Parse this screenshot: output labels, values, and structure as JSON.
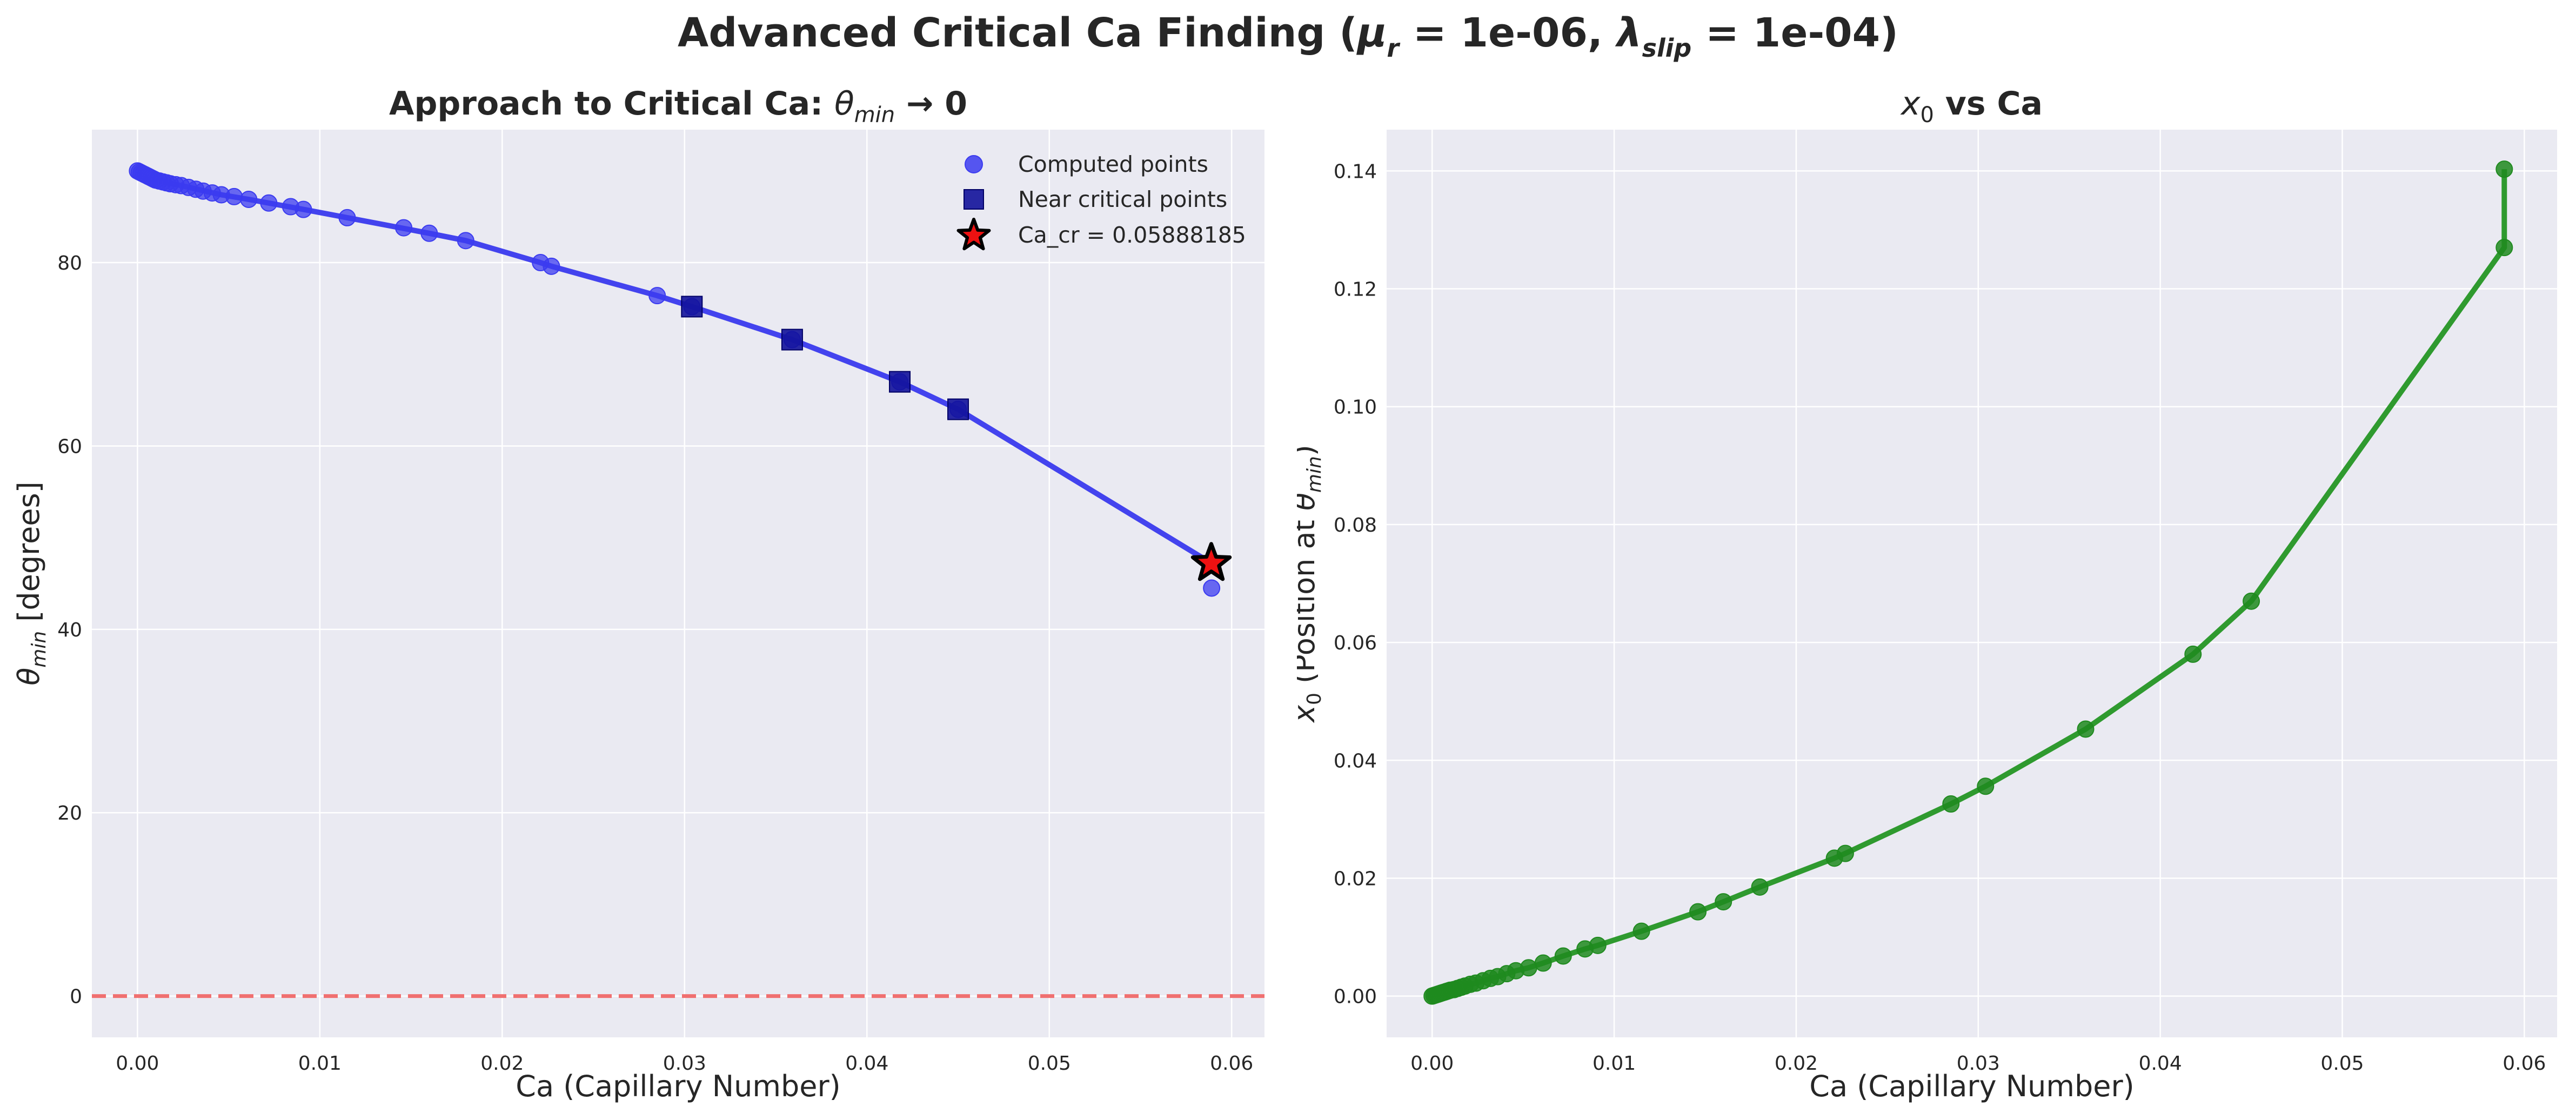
{
  "figure": {
    "title_prefix": "Advanced Critical Ca Finding (",
    "title_mu": "μ",
    "title_mu_sub": "r",
    "title_mid": " = 1e-06, ",
    "title_lambda": "λ",
    "title_lambda_sub": "slip",
    "title_suffix": " = 1e-04)"
  },
  "colors": {
    "background": "#ffffff",
    "axes_face": "#eaeaf2",
    "grid": "#ffffff",
    "text": "#262626",
    "blue_line": "#4343ee",
    "blue_marker": "#3b3bf0",
    "near_critical_marker": "#12129a",
    "star_fill": "#ee1111",
    "reference_line": "#f07070",
    "green": "#2f9a2f",
    "green_marker": "#1f8a1f"
  },
  "chart_data": [
    {
      "type": "scatter",
      "title_prefix": "Approach to Critical Ca: ",
      "title_theta": "θ",
      "title_theta_sub": "min",
      "title_suffix": " → 0",
      "xlabel": "Ca (Capillary Number)",
      "ylabel_theta": "θ",
      "ylabel_sub": "min",
      "ylabel_suffix": " [degrees]",
      "xlim": [
        -0.0025,
        0.0618
      ],
      "ylim": [
        -4.5,
        94.5
      ],
      "xticks": [
        0.0,
        0.01,
        0.02,
        0.03,
        0.04,
        0.05,
        0.06
      ],
      "xtick_labels": [
        "0.00",
        "0.01",
        "0.02",
        "0.03",
        "0.04",
        "0.05",
        "0.06"
      ],
      "yticks": [
        0,
        20,
        40,
        60,
        80
      ],
      "ytick_labels": [
        "0",
        "20",
        "40",
        "60",
        "80"
      ],
      "grid": true,
      "legend_position": "top-right",
      "series": [
        {
          "name": "Computed points",
          "marker": "circle",
          "x": [
            0.0,
            0.0001,
            0.0002,
            0.0003,
            0.0004,
            0.0005,
            0.0006,
            0.0007,
            0.0008,
            0.0009,
            0.001,
            0.0012,
            0.0014,
            0.0016,
            0.0018,
            0.0021,
            0.0024,
            0.0028,
            0.0032,
            0.0036,
            0.0041,
            0.0046,
            0.0053,
            0.0061,
            0.0072,
            0.0084,
            0.0091,
            0.0115,
            0.0146,
            0.016,
            0.018,
            0.0221,
            0.0227,
            0.0285,
            0.0304,
            0.0359,
            0.0418,
            0.045,
            0.0588,
            0.0589
          ],
          "y": [
            90.0,
            89.9,
            89.8,
            89.7,
            89.6,
            89.5,
            89.4,
            89.3,
            89.2,
            89.1,
            89.0,
            88.9,
            88.8,
            88.7,
            88.6,
            88.5,
            88.4,
            88.2,
            88.0,
            87.8,
            87.6,
            87.4,
            87.2,
            86.9,
            86.5,
            86.1,
            85.8,
            84.9,
            83.8,
            83.2,
            82.4,
            80.0,
            79.6,
            76.4,
            75.2,
            71.6,
            67.0,
            64.0,
            47.2,
            44.5
          ]
        },
        {
          "name": "Near critical points",
          "marker": "square",
          "x": [
            0.0304,
            0.0359,
            0.0418,
            0.045
          ],
          "y": [
            75.2,
            71.6,
            67.0,
            64.0
          ]
        }
      ],
      "line_x": [
        0.0,
        0.001,
        0.0024,
        0.0046,
        0.0061,
        0.0091,
        0.0115,
        0.016,
        0.018,
        0.0221,
        0.0227,
        0.0285,
        0.0304,
        0.0359,
        0.0418,
        0.045,
        0.0589
      ],
      "line_y": [
        90.0,
        89.0,
        88.4,
        87.4,
        86.9,
        85.8,
        84.9,
        83.2,
        82.4,
        80.0,
        79.6,
        76.4,
        75.2,
        71.6,
        67.0,
        64.0,
        47.2
      ],
      "critical_point": {
        "name": "Ca_cr = 0.05888185",
        "x": 0.05888185,
        "y": 47.2
      },
      "reference_line_y": 0
    },
    {
      "type": "line",
      "title_x": "x",
      "title_x_sub": "0",
      "title_suffix": " vs Ca",
      "xlabel": "Ca (Capillary Number)",
      "ylabel_x": "x",
      "ylabel_x_sub": "0",
      "ylabel_mid": " (Position at ",
      "ylabel_theta": "θ",
      "ylabel_theta_sub": "min",
      "ylabel_suffix": ")",
      "xlim": [
        -0.0025,
        0.0618
      ],
      "ylim": [
        -0.007,
        0.147
      ],
      "xticks": [
        0.0,
        0.01,
        0.02,
        0.03,
        0.04,
        0.05,
        0.06
      ],
      "xtick_labels": [
        "0.00",
        "0.01",
        "0.02",
        "0.03",
        "0.04",
        "0.05",
        "0.06"
      ],
      "yticks": [
        0.0,
        0.02,
        0.04,
        0.06,
        0.08,
        0.1,
        0.12,
        0.14
      ],
      "ytick_labels": [
        "0.00",
        "0.02",
        "0.04",
        "0.06",
        "0.08",
        "0.10",
        "0.12",
        "0.14"
      ],
      "grid": true,
      "series": [
        {
          "x": [
            0.0,
            0.0001,
            0.0002,
            0.0003,
            0.0004,
            0.0005,
            0.0006,
            0.0007,
            0.0008,
            0.0009,
            0.001,
            0.0012,
            0.0014,
            0.0016,
            0.0018,
            0.0021,
            0.0024,
            0.0028,
            0.0032,
            0.0036,
            0.0041,
            0.0046,
            0.0053,
            0.0061,
            0.0072,
            0.0084,
            0.0091,
            0.0115,
            0.0146,
            0.016,
            0.018,
            0.0221,
            0.0227,
            0.0285,
            0.0304,
            0.0359,
            0.0418,
            0.045,
            0.0589,
            0.0589
          ],
          "y": [
            0.0,
            0.0001,
            0.0002,
            0.0003,
            0.0004,
            0.0005,
            0.0006,
            0.0007,
            0.0008,
            0.0009,
            0.001,
            0.0011,
            0.0013,
            0.0015,
            0.0017,
            0.002,
            0.0022,
            0.0026,
            0.003,
            0.0033,
            0.0038,
            0.0043,
            0.0048,
            0.0056,
            0.0068,
            0.008,
            0.0086,
            0.011,
            0.0143,
            0.016,
            0.0185,
            0.0234,
            0.0242,
            0.0326,
            0.0356,
            0.0453,
            0.058,
            0.067,
            0.127,
            0.1403
          ]
        }
      ]
    }
  ]
}
